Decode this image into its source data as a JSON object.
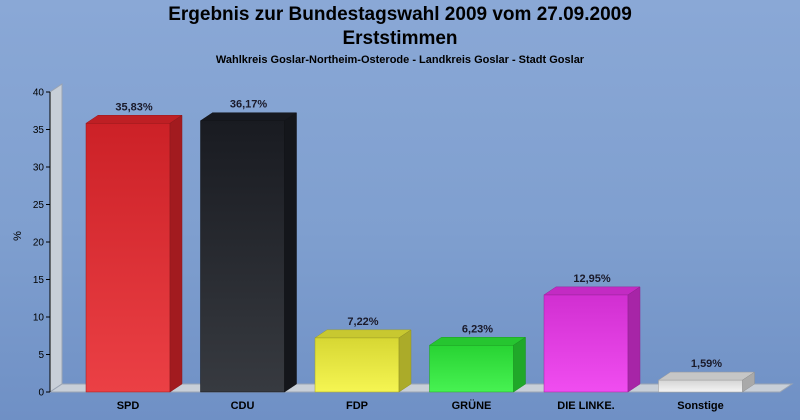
{
  "chart_data": {
    "type": "bar",
    "title": "Ergebnis zur Bundestagswahl 2009 vom 27.09.2009",
    "subtitle": "Erststimmen",
    "caption": "Wahlkreis Goslar-Northeim-Osterode - Landkreis Goslar - Stadt Goslar",
    "ylabel": "%",
    "ylim": [
      0,
      40
    ],
    "yticks": [
      "0",
      "5",
      "10",
      "15",
      "20",
      "25",
      "30",
      "35",
      "40"
    ],
    "categories": [
      "SPD",
      "CDU",
      "FDP",
      "GRÜNE",
      "DIE LINKE.",
      "Sonstige"
    ],
    "values": [
      35.83,
      36.17,
      7.22,
      6.23,
      12.95,
      1.59
    ],
    "value_labels": [
      "35,83%",
      "36,17%",
      "7,22%",
      "6,23%",
      "12,95%",
      "1,59%"
    ],
    "colors": [
      "#e8262c",
      "#1c1f26",
      "#f4f43a",
      "#2ef03a",
      "#ee35ee",
      "#f2f2f2"
    ],
    "grid": false,
    "legend": "none"
  }
}
